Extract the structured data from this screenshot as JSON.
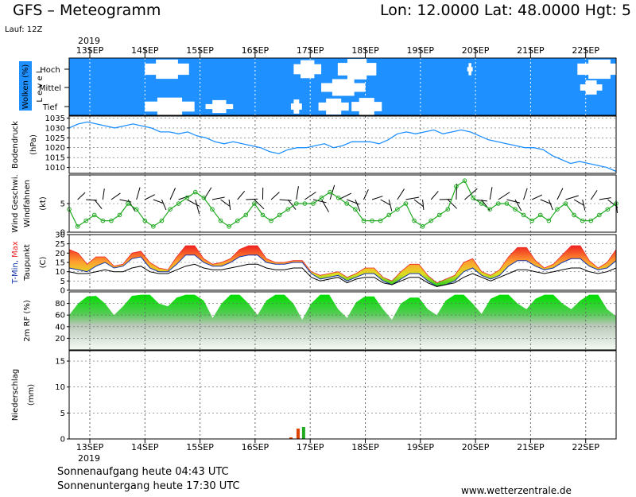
{
  "header": {
    "title": "GFS – Meteogramm",
    "coords": "Lon: 12.0000 Lat: 48.0000 Hgt: 5",
    "run": "Lauf: 12Z"
  },
  "footer": {
    "sunrise": "Sonnenaufgang heute 04:43 UTC",
    "sunset": "Sonnenuntergang heute 17:30 UTC",
    "site": "www.wetterzentrale.de"
  },
  "colors": {
    "cloud_bg": "#1e90ff",
    "pressure_line": "#1e90ff",
    "wind_line": "#22aa22",
    "temp_max": "#ee2222",
    "temp_min": "#1133aa",
    "humidity": "#22cc22",
    "precip_rain": "#22aa22",
    "precip_conv": "#dd4400"
  },
  "chart_data": {
    "type": "meteogram",
    "year": "2019",
    "dates": [
      "13SEP",
      "14SEP",
      "15SEP",
      "16SEP",
      "17SEP",
      "18SEP",
      "19SEP",
      "20SEP",
      "21SEP",
      "22SEP"
    ],
    "clouds": {
      "axis_label": "Wolken (%)",
      "level_label": "L e v e l",
      "levels": [
        "Hoch",
        "Mittel",
        "Tief"
      ],
      "patches": [
        {
          "level": "Hoch",
          "t0": 1.0,
          "t1": 1.8,
          "cover": 70
        },
        {
          "level": "Hoch",
          "t0": 3.7,
          "t1": 4.2,
          "cover": 60
        },
        {
          "level": "Hoch",
          "t0": 4.5,
          "t1": 5.2,
          "cover": 80
        },
        {
          "level": "Hoch",
          "t0": 6.85,
          "t1": 6.95,
          "cover": 15
        },
        {
          "level": "Hoch",
          "t0": 8.85,
          "t1": 9.65,
          "cover": 70
        },
        {
          "level": "Mittel",
          "t0": 4.2,
          "t1": 5.0,
          "cover": 50
        },
        {
          "level": "Mittel",
          "t0": 8.9,
          "t1": 9.3,
          "cover": 30
        },
        {
          "level": "Tief",
          "t0": 1.0,
          "t1": 1.9,
          "cover": 60
        },
        {
          "level": "Tief",
          "t0": 2.1,
          "t1": 2.6,
          "cover": 20
        },
        {
          "level": "Tief",
          "t0": 3.65,
          "t1": 3.85,
          "cover": 30
        },
        {
          "level": "Tief",
          "t0": 4.15,
          "t1": 4.7,
          "cover": 45
        },
        {
          "level": "Tief",
          "t0": 4.75,
          "t1": 5.3,
          "cover": 55
        }
      ]
    },
    "pressure": {
      "axis_label": "Bodendruck",
      "unit": "(hPa)",
      "yticks": [
        1035,
        1030,
        1025,
        1020,
        1015,
        1010
      ],
      "ylim": [
        1007,
        1036
      ],
      "values": [
        1030,
        1032,
        1033,
        1032,
        1031,
        1030,
        1031,
        1032,
        1031,
        1030,
        1028,
        1028,
        1027,
        1028,
        1026,
        1025,
        1023,
        1022,
        1023,
        1022,
        1021,
        1020,
        1018,
        1017,
        1019,
        1020,
        1020,
        1021,
        1022,
        1020,
        1021,
        1023,
        1023,
        1023,
        1022,
        1024,
        1027,
        1028,
        1027,
        1028,
        1029,
        1027,
        1028,
        1029,
        1028,
        1026,
        1024,
        1023,
        1022,
        1021,
        1020,
        1020,
        1019,
        1016,
        1014,
        1012,
        1013,
        1012,
        1011,
        1010,
        1008
      ]
    },
    "wind": {
      "axis_label_1": "Wind Geschwi.",
      "axis_label_2": "Windfahnen",
      "unit": "(kt)",
      "yticks": [
        5,
        0
      ],
      "ylim": [
        0,
        10
      ],
      "values": [
        4,
        1,
        2,
        3,
        2,
        2,
        3,
        5,
        4,
        2,
        1,
        2,
        4,
        5,
        6,
        7,
        6,
        4,
        2,
        1,
        2,
        3,
        5,
        3,
        2,
        3,
        4,
        5,
        5,
        5,
        6,
        7,
        6,
        5,
        4,
        2,
        2,
        2,
        3,
        4,
        5,
        2,
        1,
        2,
        3,
        4,
        8,
        9,
        6,
        5,
        4,
        5,
        5,
        4,
        3,
        2,
        3,
        2,
        4,
        5,
        3,
        2,
        2,
        3,
        4,
        5
      ]
    },
    "temperature": {
      "axis_label_1": "T-Min, Max",
      "axis_label_2": "Taupunkt",
      "unit": "(C)",
      "yticks": [
        30,
        25,
        20,
        15,
        10,
        5,
        0
      ],
      "ylim": [
        0,
        30
      ],
      "tmax": [
        22,
        20,
        14,
        18,
        18,
        13,
        14,
        20,
        21,
        15,
        12,
        11,
        18,
        24,
        24,
        17,
        14,
        15,
        17,
        22,
        24,
        24,
        17,
        15,
        15,
        16,
        16,
        10,
        8,
        9,
        10,
        7,
        9,
        12,
        12,
        7,
        5,
        10,
        14,
        14,
        8,
        4,
        6,
        8,
        15,
        17,
        10,
        8,
        11,
        18,
        23,
        23,
        16,
        12,
        14,
        19,
        24,
        24,
        16,
        12,
        15,
        22
      ],
      "tmin": [
        12,
        11,
        10,
        13,
        15,
        12,
        13,
        17,
        18,
        12,
        10,
        10,
        14,
        19,
        19,
        15,
        13,
        13,
        15,
        18,
        19,
        19,
        15,
        14,
        14,
        15,
        15,
        9,
        6,
        7,
        8,
        5,
        7,
        9,
        9,
        5,
        3,
        6,
        9,
        9,
        5,
        2,
        3,
        5,
        10,
        12,
        8,
        6,
        8,
        13,
        16,
        16,
        13,
        11,
        12,
        15,
        17,
        17,
        13,
        11,
        12,
        16
      ],
      "dewpoint": [
        10,
        9,
        9,
        10,
        11,
        10,
        10,
        12,
        13,
        10,
        9,
        9,
        11,
        13,
        14,
        12,
        11,
        11,
        12,
        13,
        14,
        14,
        12,
        11,
        11,
        12,
        12,
        7,
        5,
        6,
        7,
        4,
        6,
        7,
        7,
        4,
        3,
        5,
        7,
        7,
        4,
        2,
        3,
        4,
        7,
        9,
        7,
        5,
        7,
        9,
        11,
        11,
        10,
        9,
        10,
        11,
        12,
        12,
        10,
        9,
        10,
        12
      ]
    },
    "humidity": {
      "axis_label": "2m RF (%)",
      "yticks": [
        80,
        60,
        40,
        20
      ],
      "ylim": [
        0,
        100
      ],
      "values": [
        60,
        80,
        92,
        93,
        80,
        60,
        75,
        93,
        95,
        95,
        80,
        75,
        90,
        95,
        95,
        85,
        55,
        80,
        95,
        95,
        80,
        60,
        85,
        95,
        95,
        80,
        52,
        80,
        95,
        95,
        70,
        55,
        82,
        92,
        92,
        70,
        52,
        80,
        90,
        90,
        70,
        60,
        85,
        95,
        95,
        80,
        62,
        88,
        95,
        95,
        80,
        70,
        88,
        95,
        95,
        80,
        70,
        85,
        95,
        95,
        70,
        58
      ]
    },
    "precipitation": {
      "axis_label": "Niederschlag",
      "unit": "(mm)",
      "yticks": [
        15,
        10,
        5,
        0
      ],
      "ylim": [
        0,
        17
      ],
      "bars": [
        {
          "t": 3.65,
          "value": 0.3,
          "kind": "conv"
        },
        {
          "t": 3.78,
          "value": 2.0,
          "kind": "conv"
        },
        {
          "t": 3.88,
          "value": 2.3,
          "kind": "rain"
        }
      ]
    }
  }
}
